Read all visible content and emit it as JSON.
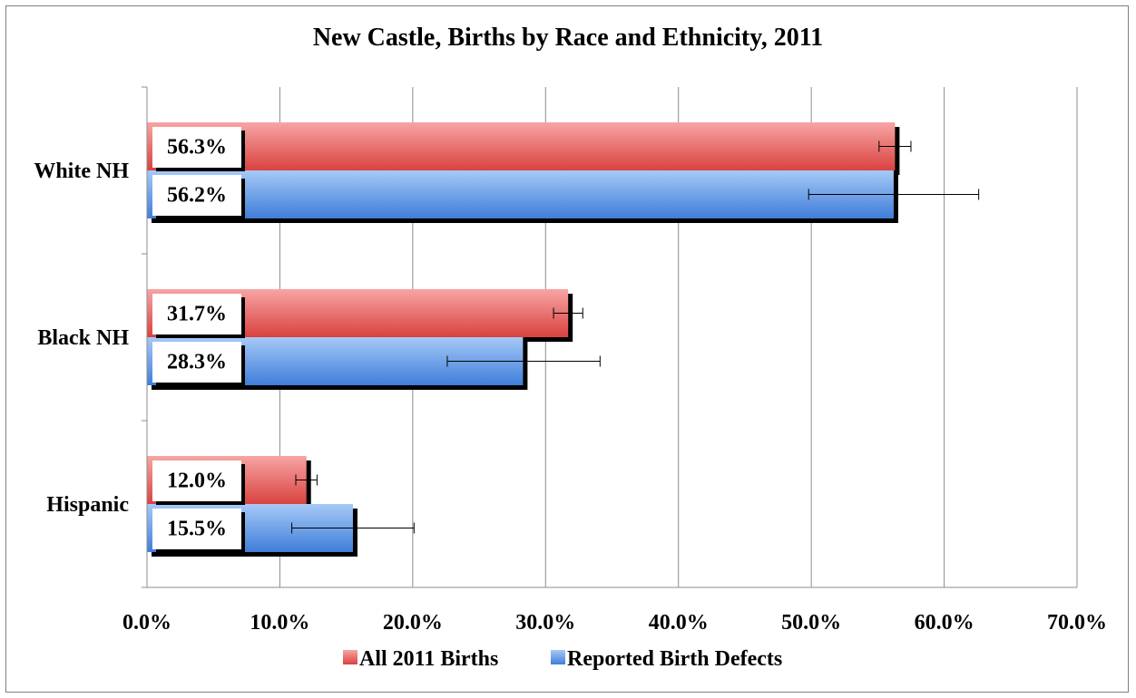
{
  "chart_data": {
    "type": "bar",
    "orientation": "horizontal",
    "title": "New Castle, Births by Race and Ethnicity, 2011",
    "categories": [
      "White NH",
      "Black NH",
      "Hispanic"
    ],
    "series": [
      {
        "name": "All 2011 Births",
        "color": "#e8605f",
        "values": [
          56.3,
          31.7,
          12.0
        ],
        "error_low": [
          55.1,
          30.6,
          11.2
        ],
        "error_high": [
          57.5,
          32.8,
          12.8
        ],
        "labels": [
          "56.3%",
          "31.7%",
          "12.0%"
        ]
      },
      {
        "name": "Reported Birth Defects",
        "color": "#5f9be8",
        "values": [
          56.2,
          28.3,
          15.5
        ],
        "error_low": [
          49.8,
          22.6,
          10.9
        ],
        "error_high": [
          62.6,
          34.1,
          20.1
        ],
        "labels": [
          "56.2%",
          "28.3%",
          "15.5%"
        ]
      }
    ],
    "xlim": [
      0,
      70
    ],
    "x_ticks": [
      0,
      10,
      20,
      30,
      40,
      50,
      60,
      70
    ],
    "x_tick_labels": [
      "0.0%",
      "10.0%",
      "20.0%",
      "30.0%",
      "40.0%",
      "50.0%",
      "60.0%",
      "70.0%"
    ],
    "xlabel": "",
    "ylabel": "",
    "grid": "vertical",
    "legend_position": "bottom"
  }
}
